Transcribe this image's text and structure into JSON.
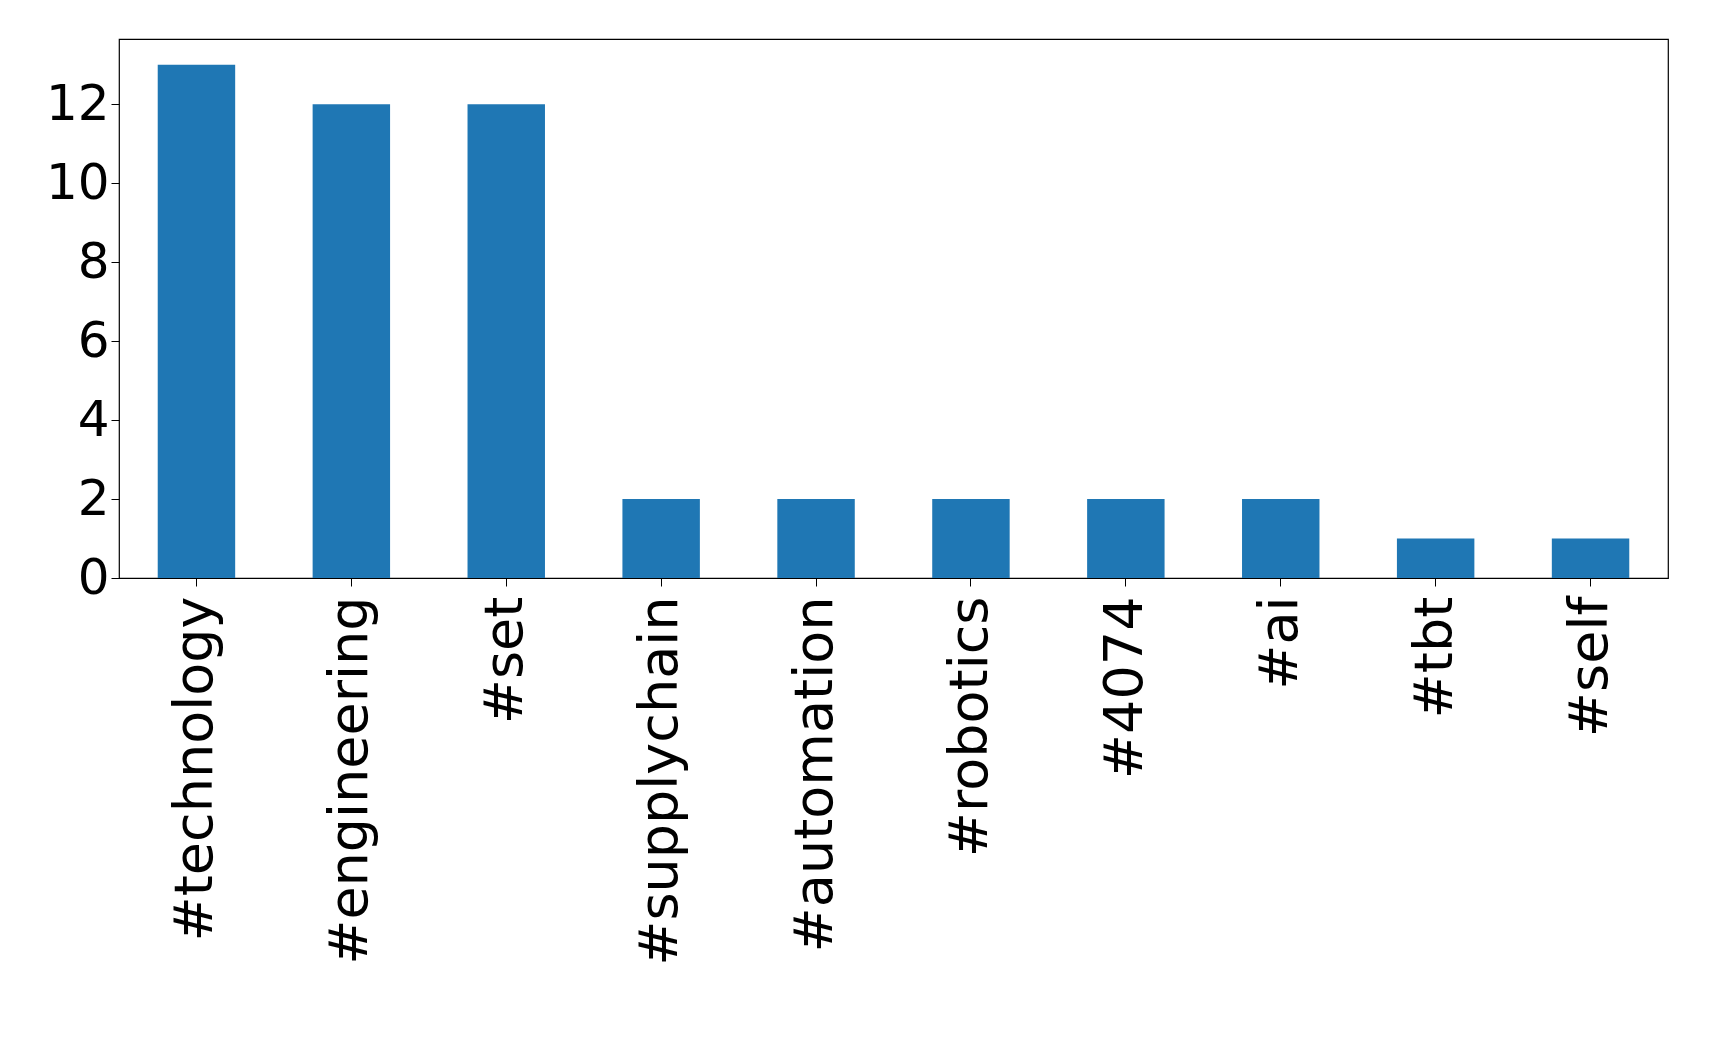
{
  "chart_data": {
    "type": "bar",
    "categories": [
      "#technology",
      "#engineering",
      "#set",
      "#supplychain",
      "#automation",
      "#robotics",
      "#4074",
      "#ai",
      "#tbt",
      "#self"
    ],
    "values": [
      13,
      12,
      12,
      2,
      2,
      2,
      2,
      2,
      1,
      1
    ],
    "color": "#1f77b4",
    "ylim": [
      0,
      13.65
    ],
    "yticks": [
      0,
      2,
      4,
      6,
      8,
      10,
      12
    ],
    "grid": false
  }
}
